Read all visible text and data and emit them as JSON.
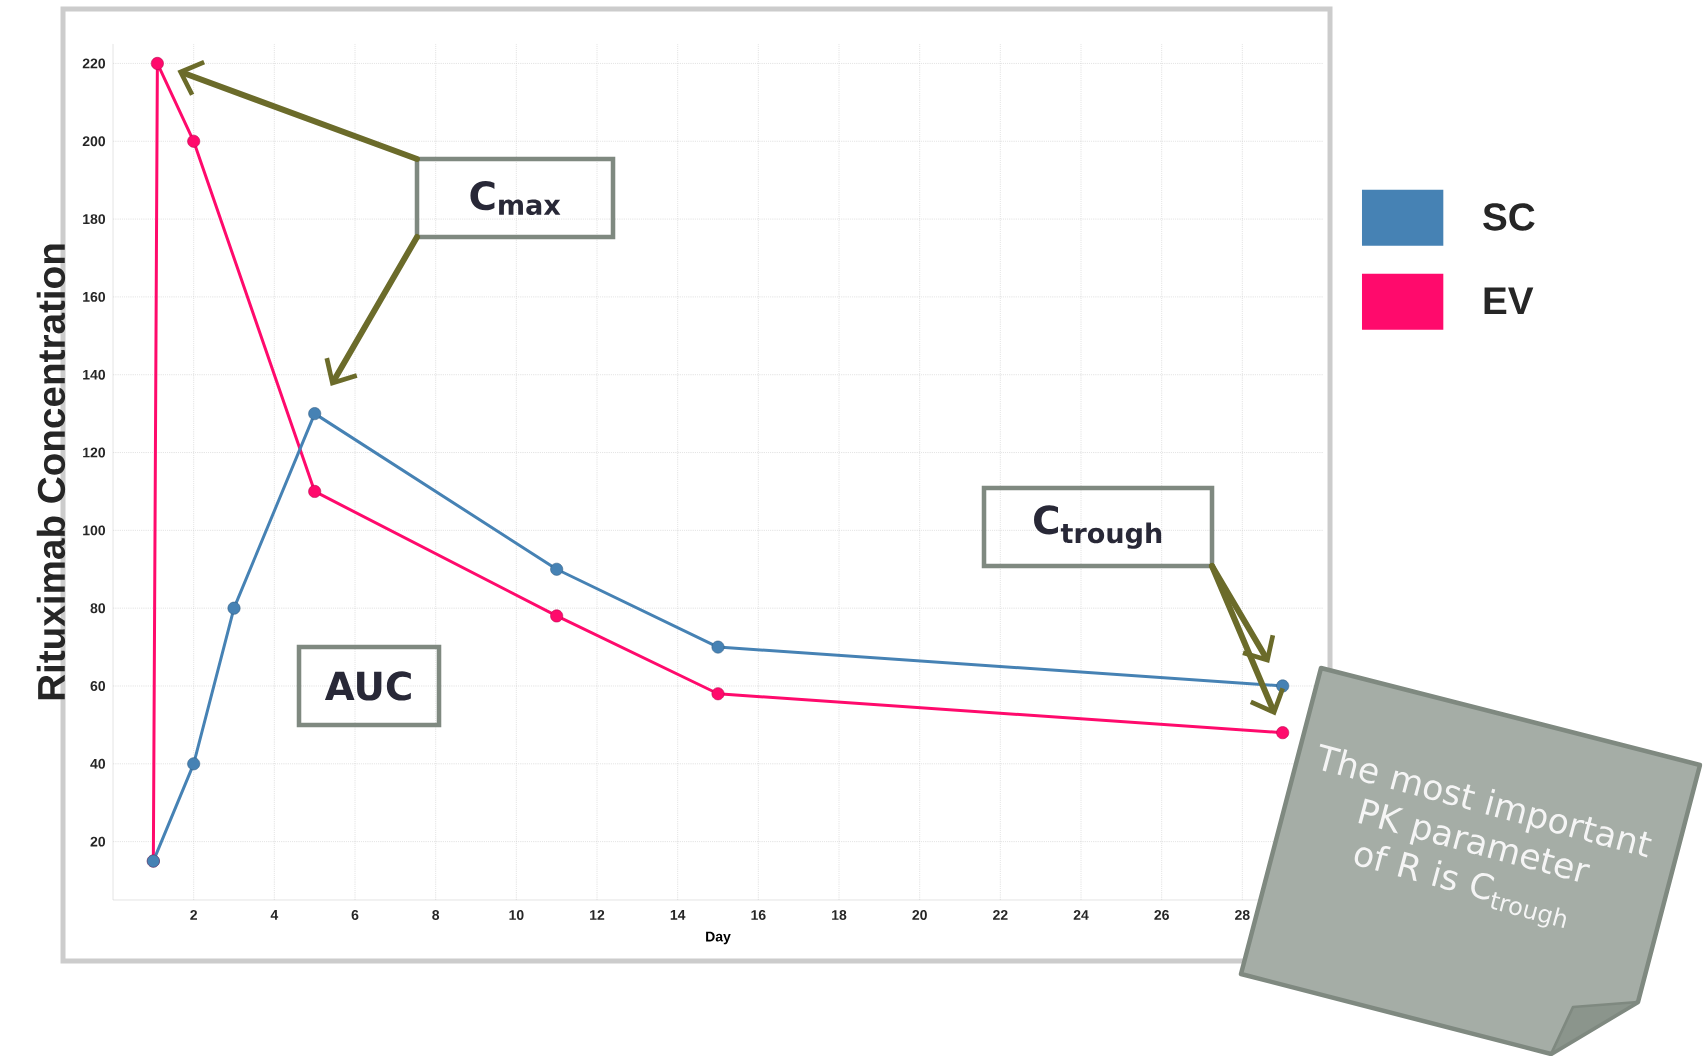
{
  "chart_data": {
    "type": "line",
    "xlabel": "Day",
    "ylabel": "Rituximab Concentration",
    "xlim": [
      0,
      30
    ],
    "xticks": [
      2,
      4,
      6,
      8,
      10,
      12,
      14,
      16,
      18,
      20,
      22,
      24,
      26,
      28
    ],
    "ylim": [
      5,
      225
    ],
    "yticks": [
      20,
      40,
      60,
      80,
      100,
      120,
      140,
      160,
      180,
      200,
      220
    ],
    "series": [
      {
        "name": "SC",
        "color": "#4682b4",
        "x": [
          1,
          2,
          3,
          5,
          11,
          15,
          29
        ],
        "values": [
          15,
          40,
          80,
          130,
          90,
          70,
          60
        ]
      },
      {
        "name": "EV",
        "color": "#ff0a6c",
        "x": [
          1,
          1.1,
          2,
          5,
          11,
          15,
          29
        ],
        "values": [
          15,
          220,
          200,
          110,
          78,
          58,
          48
        ]
      }
    ],
    "annotations": [
      "C$_{max}$",
      "AUC",
      "C$_{trough}$",
      "The most important PK parameter of R is C$_{trough}$"
    ],
    "grid": true,
    "legend": "right",
    "marker": "circle",
    "line_style": "solid"
  }
}
